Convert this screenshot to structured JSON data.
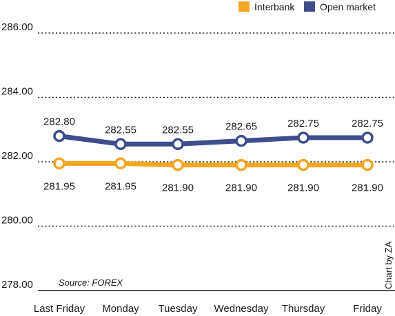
{
  "chart_data": {
    "type": "line",
    "categories": [
      "Last Friday",
      "Monday",
      "Tuesday",
      "Wednesday",
      "Thursday",
      "Friday"
    ],
    "series": [
      {
        "name": "Interbank",
        "color": "#f5a623",
        "values": [
          281.95,
          281.95,
          281.9,
          281.9,
          281.9,
          281.9
        ],
        "labels": [
          "281.95",
          "281.95",
          "281.90",
          "281.90",
          "281.90",
          "281.90"
        ]
      },
      {
        "name": "Open market",
        "color": "#3f4d8c",
        "values": [
          282.8,
          282.55,
          282.55,
          282.65,
          282.75,
          282.75
        ],
        "labels": [
          "282.80",
          "282.55",
          "282.55",
          "282.65",
          "282.75",
          "282.75"
        ]
      }
    ],
    "y_ticks": [
      "286.00",
      "284.00",
      "282.00",
      "280.00",
      "278.00"
    ],
    "ylim": [
      278,
      286
    ],
    "grid": "dotted horizontal",
    "legend": "top-right"
  },
  "source": "Source: FOREX",
  "credit": "Chart by ZA"
}
